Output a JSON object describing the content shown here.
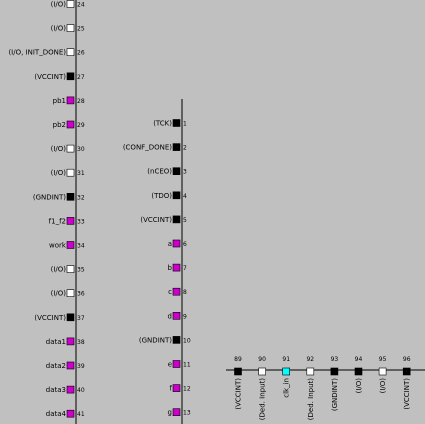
{
  "colors": {
    "background": "#c0c0c0",
    "line": "#000000",
    "white_pin": "#ffffff",
    "black_pin": "#000000",
    "magenta_pin": "#cc00cc",
    "cyan_pin": "#00ffff"
  },
  "left_column": [
    {
      "label": "(I/O)",
      "num": "24",
      "color": "white"
    },
    {
      "label": "(I/O)",
      "num": "25",
      "color": "white"
    },
    {
      "label": "(I/O, INIT_DONE)",
      "num": "26",
      "color": "white"
    },
    {
      "label": "(VCCINT)",
      "num": "27",
      "color": "black"
    },
    {
      "label": "pb1",
      "num": "28",
      "color": "magenta"
    },
    {
      "label": "pb2",
      "num": "29",
      "color": "magenta"
    },
    {
      "label": "(I/O)",
      "num": "30",
      "color": "white"
    },
    {
      "label": "(I/O)",
      "num": "31",
      "color": "white"
    },
    {
      "label": "(GNDINT)",
      "num": "32",
      "color": "black"
    },
    {
      "label": "f1_f2",
      "num": "33",
      "color": "magenta"
    },
    {
      "label": "work",
      "num": "34",
      "color": "magenta"
    },
    {
      "label": "(I/O)",
      "num": "35",
      "color": "white"
    },
    {
      "label": "(I/O)",
      "num": "36",
      "color": "white"
    },
    {
      "label": "(VCCINT)",
      "num": "37",
      "color": "black"
    },
    {
      "label": "data1",
      "num": "38",
      "color": "magenta"
    },
    {
      "label": "data2",
      "num": "39",
      "color": "magenta"
    },
    {
      "label": "data3",
      "num": "40",
      "color": "magenta"
    },
    {
      "label": "data4",
      "num": "41",
      "color": "magenta"
    }
  ],
  "middle_column": [
    {
      "label": "(TCK)",
      "num": "1",
      "color": "black"
    },
    {
      "label": "(CONF_DONE)",
      "num": "2",
      "color": "black"
    },
    {
      "label": "(nCEO)",
      "num": "3",
      "color": "black"
    },
    {
      "label": "(TDO)",
      "num": "4",
      "color": "black"
    },
    {
      "label": "(VCCINT)",
      "num": "5",
      "color": "black"
    },
    {
      "label": "a",
      "num": "6",
      "color": "magenta"
    },
    {
      "label": "b",
      "num": "7",
      "color": "magenta"
    },
    {
      "label": "c",
      "num": "8",
      "color": "magenta"
    },
    {
      "label": "d",
      "num": "9",
      "color": "magenta"
    },
    {
      "label": "(GNDINT)",
      "num": "10",
      "color": "black"
    },
    {
      "label": "e",
      "num": "11",
      "color": "magenta"
    },
    {
      "label": "f",
      "num": "12",
      "color": "magenta"
    },
    {
      "label": "g",
      "num": "13",
      "color": "magenta"
    }
  ],
  "bottom_row": [
    {
      "label": "(VCCINT)",
      "num": "89",
      "color": "black"
    },
    {
      "label": "(Ded. Input)",
      "num": "90",
      "color": "white"
    },
    {
      "label": "clk_in",
      "num": "91",
      "color": "cyan"
    },
    {
      "label": "(Ded. Input)",
      "num": "92",
      "color": "white"
    },
    {
      "label": "(GNDINT)",
      "num": "93",
      "color": "black"
    },
    {
      "label": "(I/O)",
      "num": "94",
      "color": "black"
    },
    {
      "label": "(I/O)",
      "num": "95",
      "color": "white"
    },
    {
      "label": "(VCCINT)",
      "num": "96",
      "color": "black"
    }
  ]
}
